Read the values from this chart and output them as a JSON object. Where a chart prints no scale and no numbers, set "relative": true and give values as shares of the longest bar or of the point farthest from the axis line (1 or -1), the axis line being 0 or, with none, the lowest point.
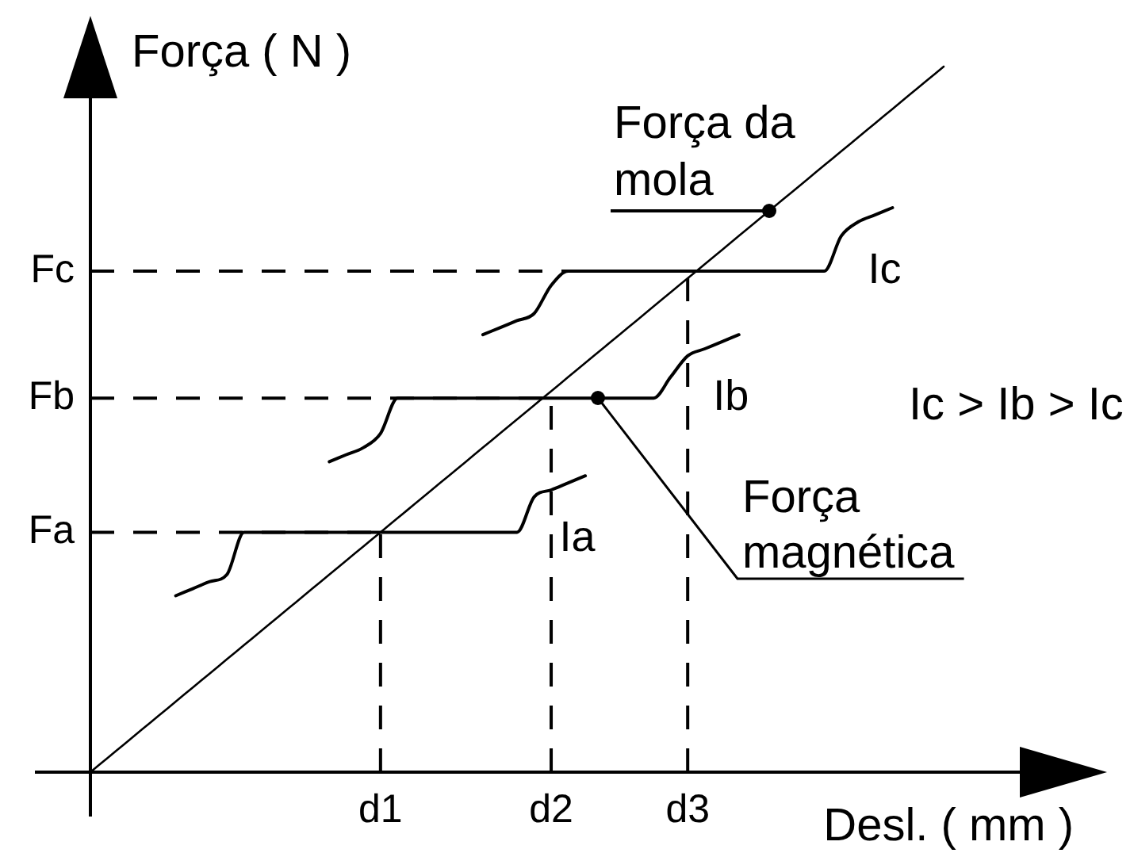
{
  "chart_data": {
    "type": "line",
    "xlabel": "Desl. ( mm )",
    "ylabel": "Força ( N )",
    "relative": true,
    "marker": "none",
    "line_style": "solid",
    "categories": [
      null,
      null,
      null,
      null,
      null,
      null,
      null,
      null,
      null,
      null,
      null,
      null,
      null,
      null,
      null,
      null,
      null,
      "d1",
      null,
      null,
      null,
      null,
      null,
      null,
      null,
      null,
      null,
      "d2",
      null,
      null,
      null,
      null,
      null,
      null,
      null,
      "d3",
      null,
      null,
      null,
      null,
      null,
      null,
      null,
      null,
      null,
      null,
      null,
      null,
      null,
      null,
      null
    ],
    "series": [
      {
        "color": "#000000",
        "values": [
          0,
          0.02,
          0.04,
          0.06,
          0.08,
          0.1,
          0.12,
          0.14,
          0.16,
          0.18,
          0.2,
          0.22,
          0.24,
          0.26,
          0.28,
          0.3,
          0.32,
          0.34,
          0.36,
          0.38,
          0.4,
          0.42,
          0.44,
          0.46,
          0.48,
          0.5,
          0.52,
          0.54,
          0.56,
          0.58,
          0.6,
          0.62,
          0.64,
          0.66,
          0.68,
          0.7,
          0.72,
          0.74,
          0.76,
          0.78,
          0.8,
          0.82,
          0.84,
          0.86,
          0.88,
          0.9,
          0.92,
          0.94,
          0.96,
          0.98,
          1
        ]
      },
      {
        "name": "Ic",
        "color": "#000000",
        "values": [
          null,
          null,
          null,
          null,
          null,
          null,
          null,
          null,
          null,
          null,
          null,
          null,
          null,
          null,
          null,
          null,
          null,
          null,
          null,
          null,
          null,
          null,
          null,
          0.62,
          0.63,
          0.64,
          0.65,
          0.69,
          0.71,
          0.71,
          0.71,
          0.71,
          0.71,
          0.71,
          0.71,
          0.71,
          0.71,
          0.71,
          0.71,
          0.71,
          0.71,
          0.71,
          0.71,
          0.71,
          0.76,
          0.78,
          0.79,
          0.8,
          null,
          null,
          null
        ]
      },
      {
        "name": "Ib",
        "color": "#000000",
        "values": [
          null,
          null,
          null,
          null,
          null,
          null,
          null,
          null,
          null,
          null,
          null,
          null,
          null,
          null,
          0.44,
          0.45,
          0.46,
          0.48,
          0.53,
          0.53,
          0.53,
          0.53,
          0.53,
          0.53,
          0.53,
          0.53,
          0.53,
          0.53,
          0.53,
          0.53,
          0.53,
          0.53,
          0.53,
          0.53,
          0.56,
          0.59,
          0.6,
          0.61,
          0.62,
          null,
          null,
          null,
          null,
          null,
          null,
          null,
          null,
          null,
          null,
          null,
          null
        ]
      },
      {
        "name": "Ia",
        "color": "#000000",
        "values": [
          null,
          null,
          null,
          null,
          null,
          0.25,
          0.26,
          0.27,
          0.28,
          0.34,
          0.34,
          0.34,
          0.34,
          0.34,
          0.34,
          0.34,
          0.34,
          0.34,
          0.34,
          0.34,
          0.34,
          0.34,
          0.34,
          0.34,
          0.34,
          0.34,
          0.39,
          0.4,
          0.41,
          0.42,
          null,
          null,
          null,
          null,
          null,
          null,
          null,
          null,
          null,
          null,
          null,
          null,
          null,
          null,
          null,
          null,
          null,
          null,
          null,
          null,
          null
        ]
      }
    ],
    "ref_lines": [
      {
        "axis": "y",
        "value": 0.34,
        "label": "Fa",
        "line_style": "dashed",
        "color": "#000000"
      },
      {
        "axis": "y",
        "value": 0.53,
        "label": "Fb",
        "line_style": "dashed",
        "color": "#000000"
      },
      {
        "axis": "y",
        "value": 0.71,
        "label": "Fc",
        "line_style": "dashed",
        "color": "#000000"
      },
      {
        "axis": "x",
        "value": "d1",
        "line_style": "dashed",
        "color": "#000000"
      },
      {
        "axis": "x",
        "value": "d2",
        "line_style": "dashed",
        "color": "#000000"
      },
      {
        "axis": "x",
        "value": "d3",
        "line_style": "dashed",
        "color": "#000000"
      }
    ],
    "annotations": [
      "Força da mola",
      "Força magnética",
      "Ic > Ib > Ic"
    ]
  }
}
